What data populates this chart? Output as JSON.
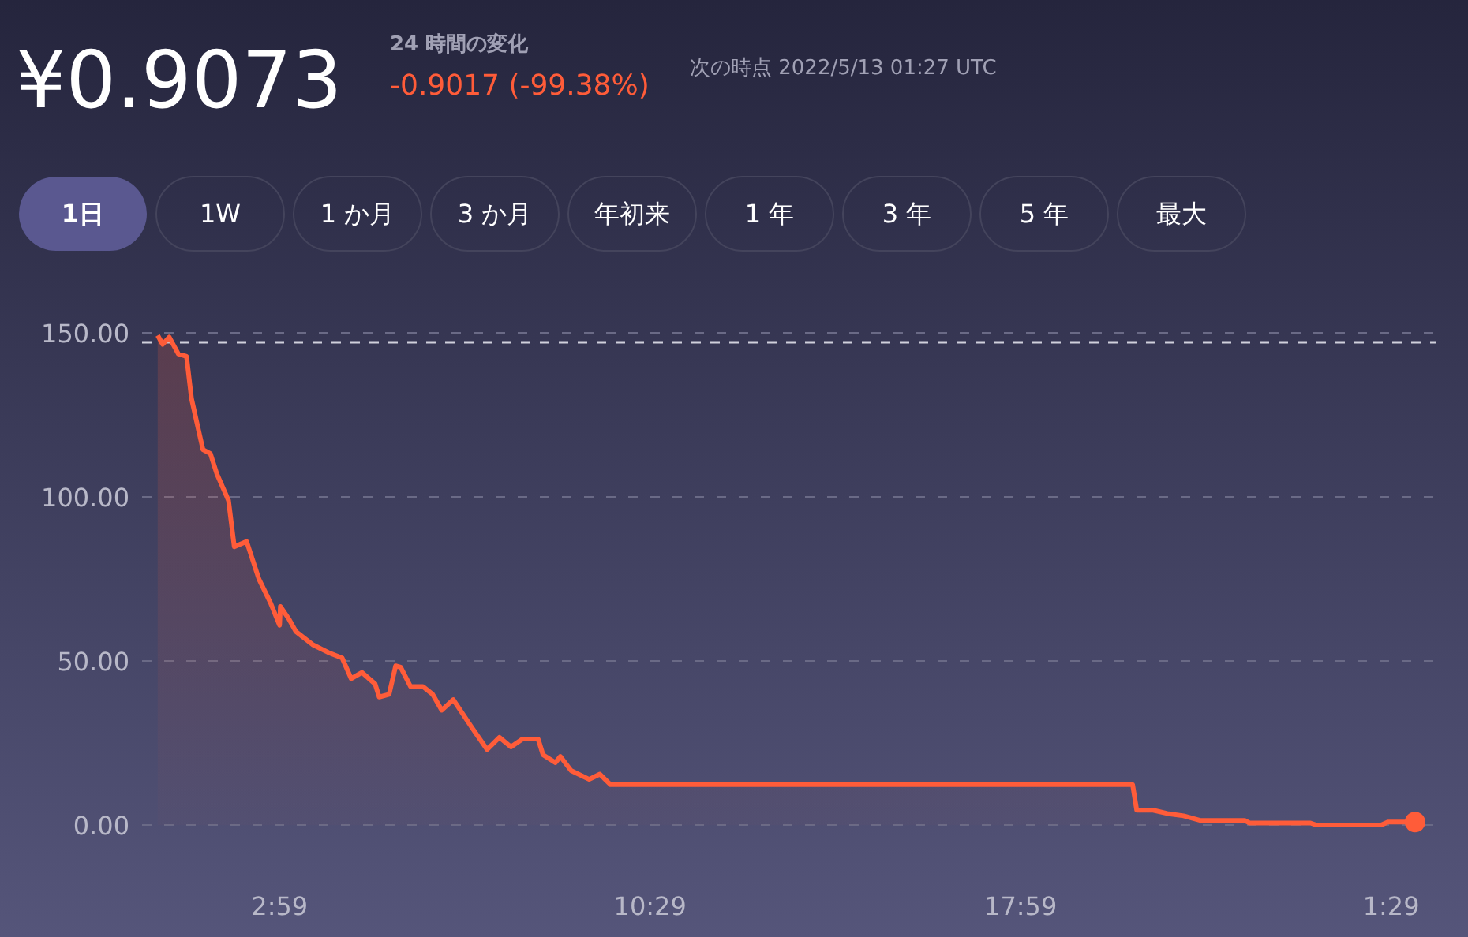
{
  "chart_data": {
    "type": "area",
    "title": "¥0.9073",
    "annotations": [
      "24 時間の変化",
      "-0.9017 (-99.38%)",
      "次の時点 2022/5/13 01:27 UTC",
      "1日",
      "1W",
      "1 か月",
      "3 か月",
      "年初来",
      "1 年",
      "3 年",
      "5 年",
      "最大"
    ],
    "x": [
      "2022-05-12T00:31",
      "2022-05-12T00:37",
      "2022-05-12T00:45",
      "2022-05-12T00:56",
      "2022-05-12T01:06",
      "2022-05-12T01:12",
      "2022-05-12T01:22",
      "2022-05-12T01:26",
      "2022-05-12T01:35",
      "2022-05-12T01:43",
      "2022-05-12T01:57",
      "2022-05-12T02:04",
      "2022-05-12T02:19",
      "2022-05-12T02:34",
      "2022-05-12T02:48",
      "2022-05-12T02:59",
      "2022-05-12T03:00",
      "2022-05-12T03:10",
      "2022-05-12T03:19",
      "2022-05-12T03:39",
      "2022-05-12T03:58",
      "2022-05-12T04:15",
      "2022-05-12T04:26",
      "2022-05-12T04:39",
      "2022-05-12T04:55",
      "2022-05-12T05:00",
      "2022-05-12T05:12",
      "2022-05-12T05:20",
      "2022-05-12T05:26",
      "2022-05-12T05:38",
      "2022-05-12T05:53",
      "2022-05-12T06:05",
      "2022-05-12T06:16",
      "2022-05-12T06:30",
      "2022-05-12T06:52",
      "2022-05-12T07:11",
      "2022-05-12T07:26",
      "2022-05-12T07:40",
      "2022-05-12T07:54",
      "2022-05-12T08:13",
      "2022-05-12T08:19",
      "2022-05-12T08:34",
      "2022-05-12T08:40",
      "2022-05-12T08:53",
      "2022-05-12T09:15",
      "2022-05-12T09:28",
      "2022-05-12T09:41",
      "2022-05-12T20:15",
      "2022-05-12T20:20",
      "2022-05-12T20:40",
      "2022-05-12T20:57",
      "2022-05-12T21:17",
      "2022-05-12T21:37",
      "2022-05-12T22:31",
      "2022-05-12T22:37",
      "2022-05-12T23:51",
      "2022-05-12T23:58",
      "2022-05-13T01:17",
      "2022-05-13T01:25",
      "2022-05-13T01:58"
    ],
    "series": [
      {
        "color": "#ff5c39",
        "values": [
          149.2,
          146.5,
          148.7,
          143.6,
          142.8,
          130,
          118.8,
          114.4,
          113.2,
          106.9,
          98.9,
          84.8,
          86.4,
          74.9,
          67.7,
          60.9,
          66.6,
          62.9,
          58.9,
          55,
          52.6,
          50.9,
          44.6,
          46.5,
          43,
          39,
          39.8,
          48.5,
          48.1,
          42.2,
          42.2,
          39.8,
          35,
          38.2,
          29.9,
          23,
          26.7,
          23.8,
          26.2,
          26.2,
          21.4,
          19,
          20.9,
          16.6,
          13.9,
          15.5,
          12.3,
          12.3,
          4.5,
          4.5,
          3.5,
          2.8,
          1.4,
          1.4,
          0.6,
          0.6,
          0,
          0,
          0.9,
          0.9
        ]
      }
    ],
    "xlim": [
      "2022-05-12T00:12",
      "2022-05-13T02:24"
    ],
    "xticks": [
      {
        "value": "2022-05-12T02:59",
        "label": "2:59"
      },
      {
        "value": "2022-05-12T10:29",
        "label": "10:29"
      },
      {
        "value": "2022-05-12T17:59",
        "label": "17:59"
      },
      {
        "value": "2022-05-13T01:29",
        "label": "1:29"
      }
    ],
    "ylim": [
      0,
      150
    ],
    "yticks": [
      {
        "value": 0,
        "label": "0.00"
      },
      {
        "value": 50,
        "label": "50.00"
      },
      {
        "value": 100,
        "label": "100.00"
      },
      {
        "value": 150,
        "label": "150.00"
      }
    ],
    "ref_lines": [
      {
        "axis": "y",
        "value": 147.1,
        "color": "#d0d0dc",
        "line_style": "dashed"
      }
    ],
    "grid": "y"
  }
}
